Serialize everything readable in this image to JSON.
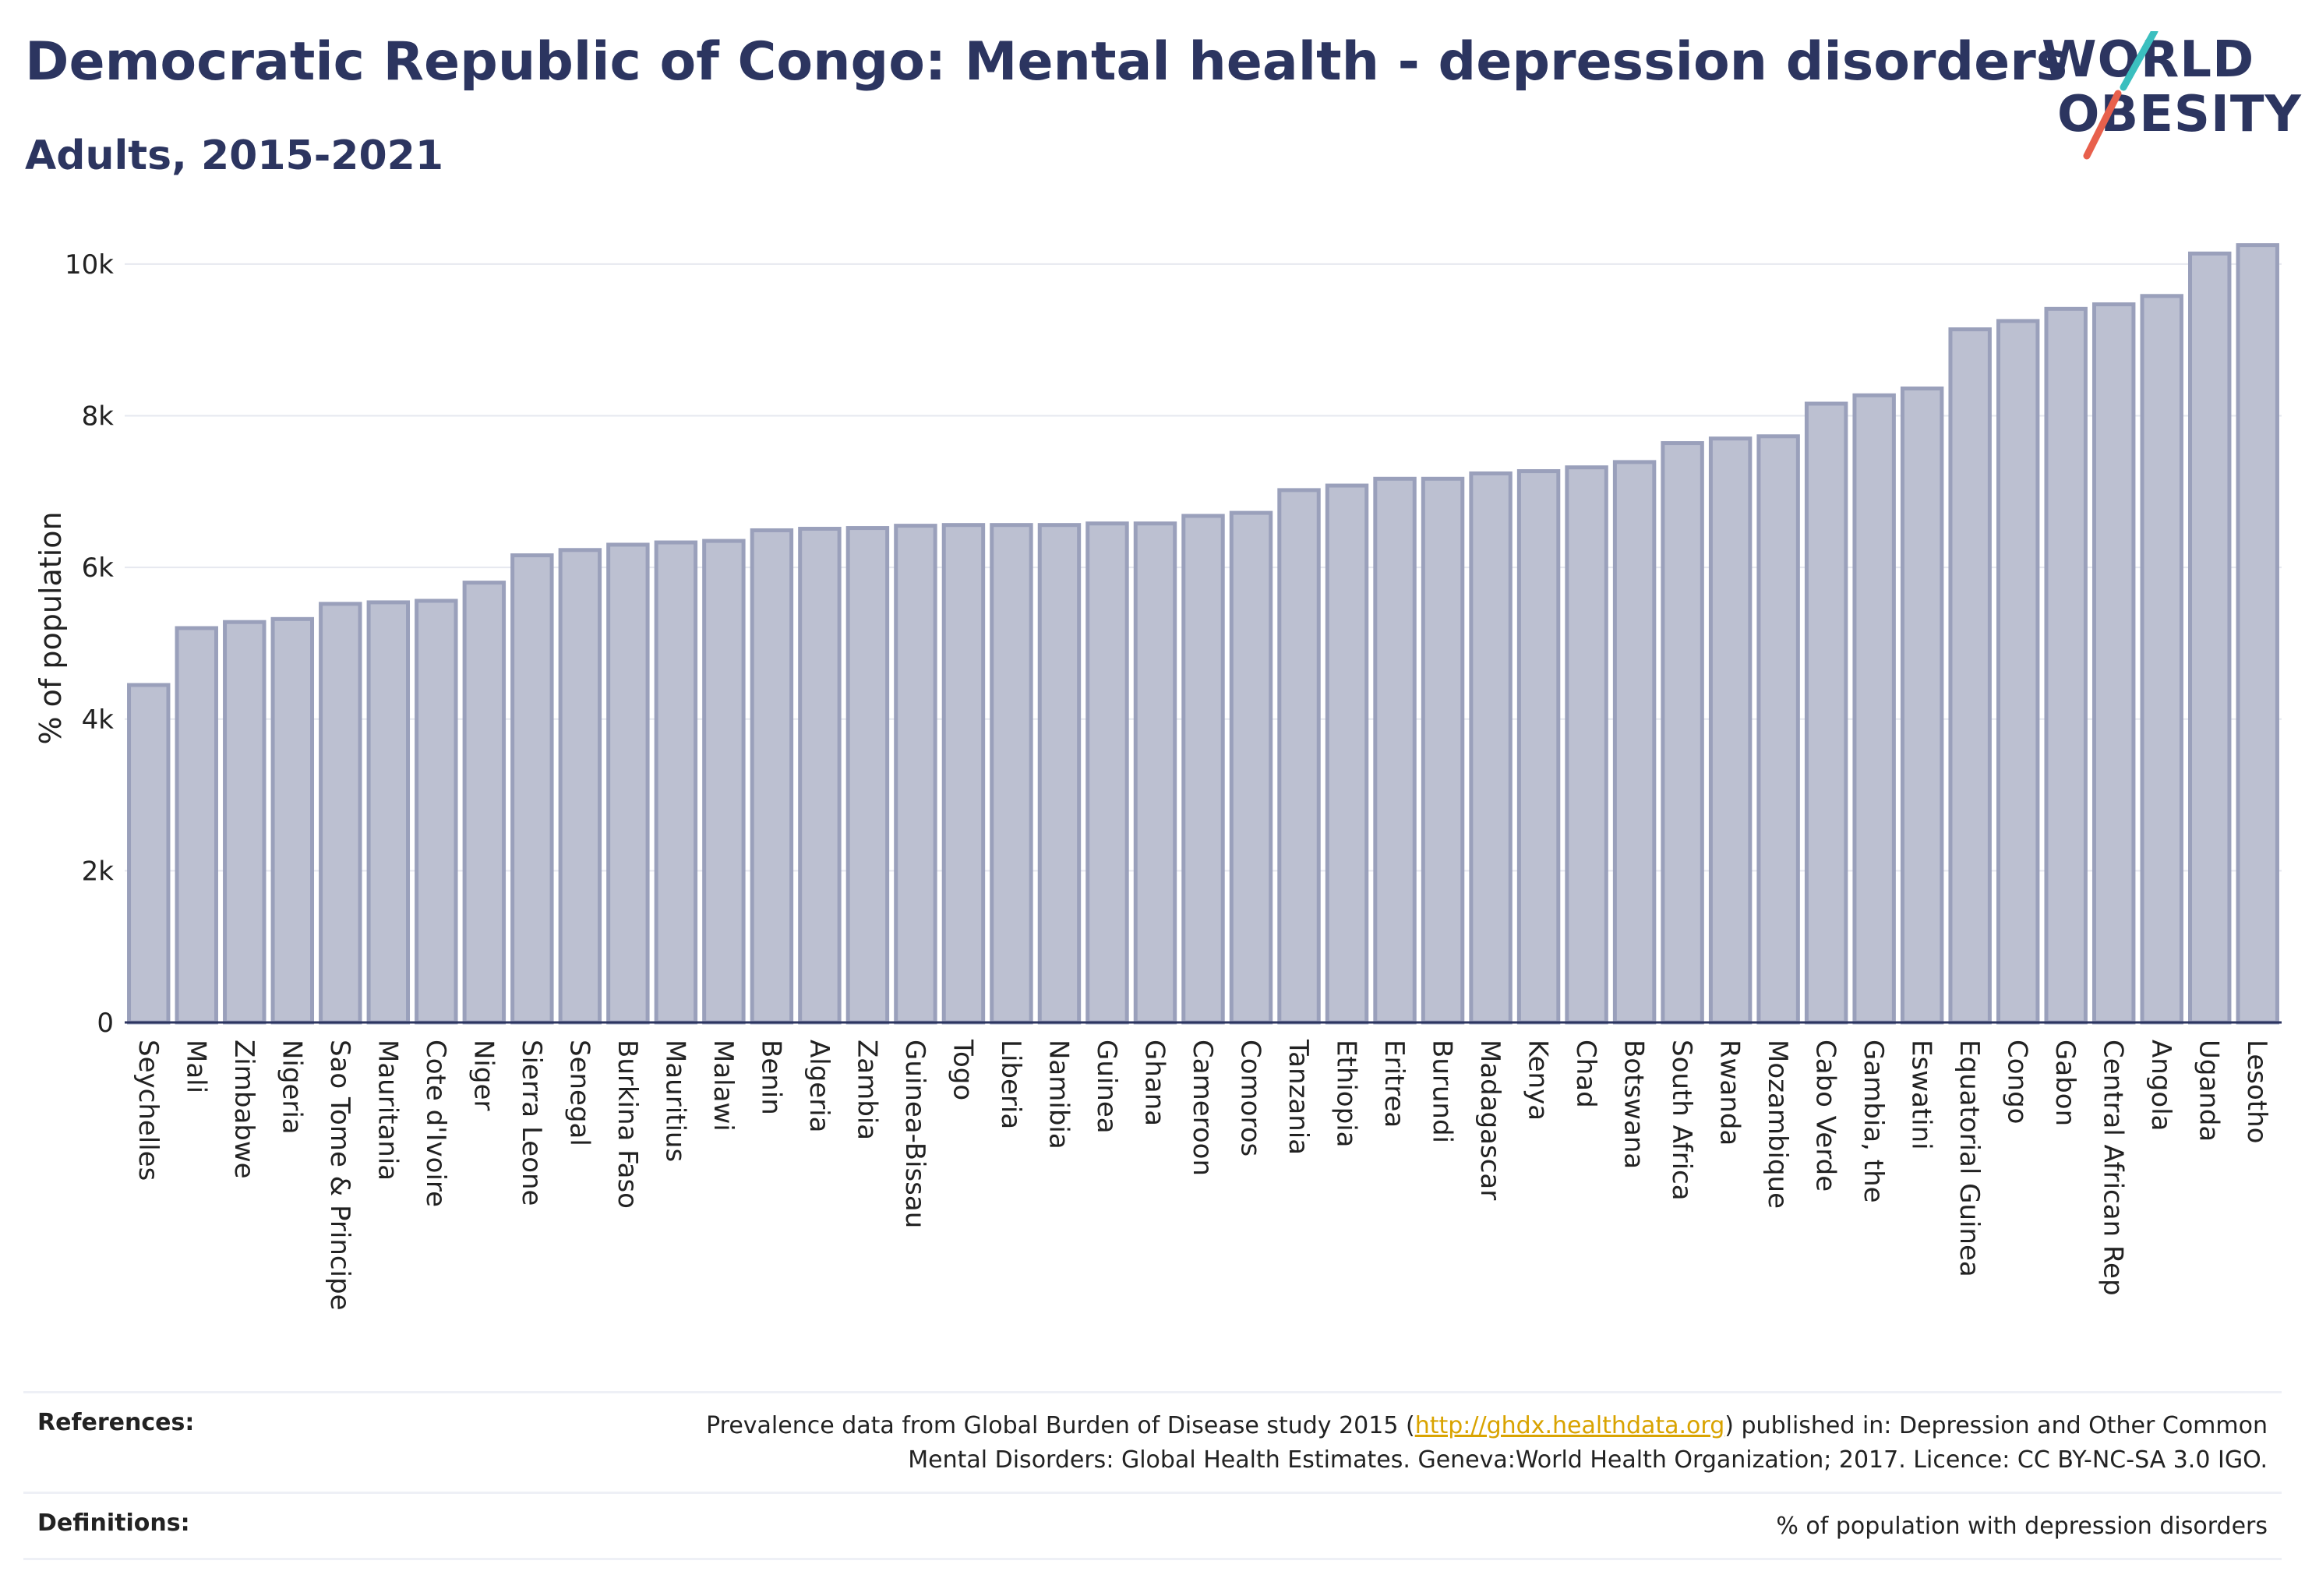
{
  "header": {
    "title": "Democratic Republic of Congo: Mental health - depression disorders",
    "subtitle": "Adults, 2015-2021"
  },
  "logo": {
    "line1": "WORLD",
    "line2": "OBESITY",
    "accent_teal": "#3bbfbf",
    "accent_red": "#e8604c"
  },
  "colors": {
    "bar_fill": "#bcc0d1",
    "bar_stroke": "#9aa0bb",
    "text_dark": "#2c3560"
  },
  "chart_data": {
    "type": "bar",
    "ylabel": "% of population",
    "ylim": [
      0,
      10400
    ],
    "yticks": [
      0,
      2000,
      4000,
      6000,
      8000,
      10000
    ],
    "ytick_labels": [
      "0",
      "2k",
      "4k",
      "6k",
      "8k",
      "10k"
    ],
    "grid": true,
    "categories": [
      "Seychelles",
      "Mali",
      "Zimbabwe",
      "Nigeria",
      "Sao Tome & Principe",
      "Mauritania",
      "Cote d'Ivoire",
      "Niger",
      "Sierra Leone",
      "Senegal",
      "Burkina Faso",
      "Mauritius",
      "Malawi",
      "Benin",
      "Algeria",
      "Zambia",
      "Guinea-Bissau",
      "Togo",
      "Liberia",
      "Namibia",
      "Guinea",
      "Ghana",
      "Cameroon",
      "Comoros",
      "Tanzania",
      "Ethiopia",
      "Eritrea",
      "Burundi",
      "Madagascar",
      "Kenya",
      "Chad",
      "Botswana",
      "South Africa",
      "Rwanda",
      "Mozambique",
      "Cabo Verde",
      "Gambia, the",
      "Eswatini",
      "Equatorial Guinea",
      "Congo",
      "Gabon",
      "Central African Rep",
      "Angola",
      "Uganda",
      "Lesotho"
    ],
    "values": [
      4450,
      5200,
      5280,
      5320,
      5520,
      5540,
      5560,
      5800,
      6160,
      6230,
      6300,
      6330,
      6350,
      6490,
      6510,
      6520,
      6550,
      6560,
      6560,
      6560,
      6580,
      6580,
      6680,
      6720,
      7020,
      7080,
      7170,
      7170,
      7240,
      7270,
      7320,
      7390,
      7640,
      7700,
      7730,
      8160,
      8270,
      8360,
      9140,
      9250,
      9410,
      9470,
      9580,
      10140,
      10250
    ]
  },
  "references": {
    "label": "References:",
    "text_before": "Prevalence data from Global Burden of Disease study 2015 (",
    "link": "http://ghdx.healthdata.org",
    "text_after": ") published in: Depression and Other Common",
    "line2": "Mental Disorders: Global Health Estimates. Geneva:World Health Organization; 2017. Licence: CC BY-NC-SA 3.0 IGO."
  },
  "definitions": {
    "label": "Definitions:",
    "text": "% of population with depression disorders"
  }
}
